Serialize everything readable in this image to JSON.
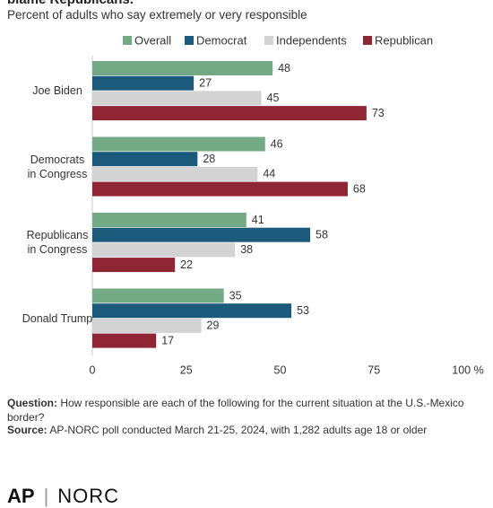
{
  "chart_data": {
    "type": "bar",
    "orientation": "horizontal",
    "title": "blame Republicans.",
    "subtitle": "Percent of adults who say extremely or very responsible",
    "categories": [
      "Joe Biden",
      "Democrats\nin Congress",
      "Republicans\nin Congress",
      "Donald Trump"
    ],
    "series": [
      {
        "name": "Overall",
        "color": "#74a985",
        "values": [
          48,
          46,
          41,
          35
        ]
      },
      {
        "name": "Democrat",
        "color": "#1b5a7a",
        "values": [
          27,
          28,
          58,
          53
        ]
      },
      {
        "name": "Independents",
        "color": "#d3d3d3",
        "values": [
          45,
          44,
          38,
          29
        ]
      },
      {
        "name": "Republican",
        "color": "#8e2636",
        "values": [
          73,
          68,
          22,
          17
        ]
      }
    ],
    "xlim": [
      0,
      100
    ],
    "xticks": [
      0,
      25,
      50,
      75,
      {
        "value": 100,
        "label": "100 %"
      }
    ],
    "grid": false,
    "legend": "top",
    "notes": {
      "question_label": "Question:",
      "question": "How responsible are each of the following for the current situation at the U.S.-Mexico border?",
      "source_label": "Source:",
      "source": "AP-NORC poll conducted March 21-25, 2024, with 1,282 adults age 18 or older"
    },
    "logo": {
      "left": "AP",
      "right": "NORC"
    }
  }
}
